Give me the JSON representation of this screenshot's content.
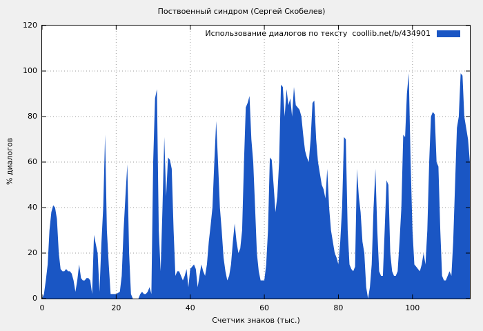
{
  "title": "Поствоенный синдром (Сергей Скобелев)",
  "legend": {
    "label": "Использование диалогов по тексту  coollib.net/b/434901",
    "swatch_color": "#1a56c4"
  },
  "axes": {
    "x_label": "Счетчик знаков (тыс.)",
    "y_label": "% диалогов",
    "x_ticks": [
      0,
      20,
      40,
      60,
      80,
      100
    ],
    "y_ticks": [
      0,
      20,
      40,
      60,
      80,
      100,
      120
    ]
  },
  "chart_data": {
    "type": "area",
    "title": "Поствоенный синдром (Сергей Скобелев)",
    "xlabel": "Счетчик знаков (тыс.)",
    "ylabel": "% диалогов",
    "xlim": [
      0,
      115.5
    ],
    "ylim": [
      0,
      120
    ],
    "grid": true,
    "legend_position": "top-right",
    "series": [
      {
        "name": "Использование диалогов по тексту coollib.net/b/434901",
        "color": "#1a56c4",
        "points": [
          [
            0,
            0
          ],
          [
            0.5,
            2
          ],
          [
            1,
            8
          ],
          [
            1.5,
            15
          ],
          [
            2,
            30
          ],
          [
            2.5,
            38
          ],
          [
            3,
            41
          ],
          [
            3.5,
            40
          ],
          [
            4,
            35
          ],
          [
            4.5,
            20
          ],
          [
            5,
            13
          ],
          [
            5.5,
            12
          ],
          [
            6,
            12
          ],
          [
            6.5,
            13
          ],
          [
            7,
            12
          ],
          [
            7.5,
            12
          ],
          [
            8,
            11
          ],
          [
            8.5,
            8
          ],
          [
            9,
            3
          ],
          [
            9.5,
            8
          ],
          [
            10,
            15
          ],
          [
            10.5,
            9
          ],
          [
            11,
            8
          ],
          [
            11.5,
            8
          ],
          [
            12,
            9
          ],
          [
            12.5,
            9
          ],
          [
            13,
            8
          ],
          [
            13.5,
            2
          ],
          [
            14,
            28
          ],
          [
            14.5,
            24
          ],
          [
            15,
            20
          ],
          [
            15.5,
            3
          ],
          [
            16,
            24
          ],
          [
            16.5,
            40
          ],
          [
            17,
            72
          ],
          [
            17.5,
            30
          ],
          [
            18,
            15
          ],
          [
            18.5,
            2
          ],
          [
            19,
            2
          ],
          [
            20,
            2
          ],
          [
            21,
            3
          ],
          [
            21.5,
            10
          ],
          [
            22,
            30
          ],
          [
            22.5,
            45
          ],
          [
            23,
            59
          ],
          [
            23.5,
            20
          ],
          [
            24,
            2
          ],
          [
            24.5,
            0
          ],
          [
            25,
            0
          ],
          [
            26,
            0
          ],
          [
            26.5,
            2
          ],
          [
            27,
            3
          ],
          [
            27.5,
            2
          ],
          [
            28,
            2
          ],
          [
            28.5,
            3
          ],
          [
            29,
            5
          ],
          [
            29.5,
            2
          ],
          [
            30,
            60
          ],
          [
            30.5,
            88
          ],
          [
            31,
            92
          ],
          [
            31.5,
            30
          ],
          [
            32,
            12
          ],
          [
            32.5,
            40
          ],
          [
            33,
            71
          ],
          [
            33.5,
            45
          ],
          [
            34,
            62
          ],
          [
            34.5,
            61
          ],
          [
            35,
            57
          ],
          [
            35.5,
            30
          ],
          [
            36,
            10
          ],
          [
            36.5,
            12
          ],
          [
            37,
            12
          ],
          [
            37.5,
            10
          ],
          [
            38,
            8
          ],
          [
            38.5,
            10
          ],
          [
            39,
            13
          ],
          [
            39.5,
            5
          ],
          [
            40,
            13
          ],
          [
            40.5,
            14
          ],
          [
            41,
            15
          ],
          [
            41.5,
            13
          ],
          [
            42,
            5
          ],
          [
            42.5,
            10
          ],
          [
            43,
            15
          ],
          [
            43.5,
            12
          ],
          [
            44,
            10
          ],
          [
            44.5,
            15
          ],
          [
            45,
            25
          ],
          [
            45.5,
            32
          ],
          [
            46,
            40
          ],
          [
            46.5,
            60
          ],
          [
            47,
            78
          ],
          [
            47.5,
            60
          ],
          [
            48,
            40
          ],
          [
            48.5,
            30
          ],
          [
            49,
            18
          ],
          [
            49.5,
            12
          ],
          [
            50,
            8
          ],
          [
            50.5,
            10
          ],
          [
            51,
            15
          ],
          [
            51.5,
            25
          ],
          [
            52,
            33
          ],
          [
            52.5,
            25
          ],
          [
            53,
            20
          ],
          [
            53.5,
            22
          ],
          [
            54,
            30
          ],
          [
            54.5,
            60
          ],
          [
            55,
            84
          ],
          [
            55.5,
            86
          ],
          [
            56,
            89
          ],
          [
            56.5,
            70
          ],
          [
            57,
            60
          ],
          [
            57.5,
            40
          ],
          [
            58,
            20
          ],
          [
            58.5,
            12
          ],
          [
            59,
            8
          ],
          [
            59.5,
            8
          ],
          [
            60,
            8
          ],
          [
            60.5,
            15
          ],
          [
            61,
            30
          ],
          [
            61.5,
            62
          ],
          [
            62,
            61
          ],
          [
            62.5,
            50
          ],
          [
            63,
            38
          ],
          [
            63.5,
            45
          ],
          [
            64,
            60
          ],
          [
            64.5,
            94
          ],
          [
            65,
            93
          ],
          [
            65.5,
            80
          ],
          [
            66,
            92
          ],
          [
            66.5,
            85
          ],
          [
            67,
            88
          ],
          [
            67.5,
            80
          ],
          [
            68,
            93
          ],
          [
            68.5,
            85
          ],
          [
            69,
            84
          ],
          [
            69.5,
            83
          ],
          [
            70,
            80
          ],
          [
            70.5,
            72
          ],
          [
            71,
            65
          ],
          [
            71.5,
            62
          ],
          [
            72,
            60
          ],
          [
            72.5,
            70
          ],
          [
            73,
            86
          ],
          [
            73.5,
            87
          ],
          [
            74,
            70
          ],
          [
            74.5,
            60
          ],
          [
            75,
            55
          ],
          [
            75.5,
            50
          ],
          [
            76,
            48
          ],
          [
            76.5,
            44
          ],
          [
            77,
            57
          ],
          [
            77.5,
            40
          ],
          [
            78,
            30
          ],
          [
            78.5,
            25
          ],
          [
            79,
            20
          ],
          [
            79.5,
            18
          ],
          [
            80,
            15
          ],
          [
            80.5,
            25
          ],
          [
            81,
            40
          ],
          [
            81.5,
            71
          ],
          [
            82,
            70
          ],
          [
            82.5,
            30
          ],
          [
            83,
            15
          ],
          [
            83.5,
            13
          ],
          [
            84,
            12
          ],
          [
            84.5,
            14
          ],
          [
            85,
            57
          ],
          [
            85.5,
            45
          ],
          [
            86,
            38
          ],
          [
            86.5,
            25
          ],
          [
            87,
            20
          ],
          [
            87.5,
            5
          ],
          [
            88,
            0
          ],
          [
            88.5,
            5
          ],
          [
            89,
            15
          ],
          [
            89.5,
            40
          ],
          [
            90,
            57
          ],
          [
            90.5,
            30
          ],
          [
            91,
            12
          ],
          [
            91.5,
            10
          ],
          [
            92,
            10
          ],
          [
            92.5,
            30
          ],
          [
            93,
            52
          ],
          [
            93.5,
            50
          ],
          [
            94,
            20
          ],
          [
            94.5,
            12
          ],
          [
            95,
            10
          ],
          [
            95.5,
            10
          ],
          [
            96,
            12
          ],
          [
            96.5,
            25
          ],
          [
            97,
            40
          ],
          [
            97.5,
            72
          ],
          [
            98,
            71
          ],
          [
            98.5,
            90
          ],
          [
            99,
            99
          ],
          [
            99.5,
            60
          ],
          [
            100,
            30
          ],
          [
            100.5,
            15
          ],
          [
            101,
            14
          ],
          [
            101.5,
            13
          ],
          [
            102,
            12
          ],
          [
            102.5,
            15
          ],
          [
            103,
            20
          ],
          [
            103.5,
            15
          ],
          [
            104,
            30
          ],
          [
            104.5,
            60
          ],
          [
            105,
            80
          ],
          [
            105.5,
            82
          ],
          [
            106,
            81
          ],
          [
            106.5,
            60
          ],
          [
            107,
            58
          ],
          [
            107.5,
            30
          ],
          [
            108,
            10
          ],
          [
            108.5,
            8
          ],
          [
            109,
            8
          ],
          [
            109.5,
            10
          ],
          [
            110,
            12
          ],
          [
            110.5,
            10
          ],
          [
            111,
            25
          ],
          [
            111.5,
            50
          ],
          [
            112,
            75
          ],
          [
            112.5,
            80
          ],
          [
            113,
            99
          ],
          [
            113.5,
            98
          ],
          [
            114,
            80
          ],
          [
            114.5,
            75
          ],
          [
            115,
            70
          ],
          [
            115.5,
            60
          ]
        ]
      }
    ]
  }
}
